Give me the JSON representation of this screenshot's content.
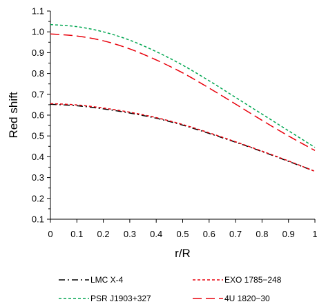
{
  "chart_data": {
    "type": "line",
    "xlabel": "r/R",
    "ylabel": "Red shift",
    "xlim": [
      0,
      1
    ],
    "ylim": [
      0.1,
      1.1
    ],
    "x_ticks": [
      "0",
      "0.1",
      "0.2",
      "0.3",
      "0.4",
      "0.5",
      "0.6",
      "0.7",
      "0.8",
      "0.9",
      "1"
    ],
    "y_ticks": [
      "0.1",
      "0.2",
      "0.3",
      "0.4",
      "0.5",
      "0.6",
      "0.7",
      "0.8",
      "0.9",
      "1.0",
      "1.1"
    ],
    "grid": false,
    "legend_position": "bottom",
    "x": [
      0,
      0.1,
      0.2,
      0.3,
      0.4,
      0.5,
      0.6,
      0.7,
      0.8,
      0.9,
      1.0
    ],
    "series": [
      {
        "name": "LMC X-4",
        "color": "#000000",
        "dash": "dash-dot",
        "values": [
          0.652,
          0.645,
          0.63,
          0.61,
          0.585,
          0.552,
          0.512,
          0.47,
          0.425,
          0.378,
          0.33
        ]
      },
      {
        "name": "EXO 1785−248",
        "color": "#e8000b",
        "dash": "short-dash",
        "values": [
          0.655,
          0.649,
          0.634,
          0.614,
          0.588,
          0.555,
          0.515,
          0.472,
          0.427,
          0.38,
          0.33
        ]
      },
      {
        "name": "PSR J1903+327",
        "color": "#00a650",
        "dash": "short-dash",
        "values": [
          1.035,
          1.025,
          1.0,
          0.96,
          0.905,
          0.84,
          0.765,
          0.685,
          0.605,
          0.525,
          0.445
        ]
      },
      {
        "name": "4U 1820−30",
        "color": "#e8000b",
        "dash": "long-dash",
        "values": [
          0.99,
          0.98,
          0.957,
          0.918,
          0.865,
          0.803,
          0.73,
          0.653,
          0.575,
          0.5,
          0.43
        ]
      }
    ]
  }
}
